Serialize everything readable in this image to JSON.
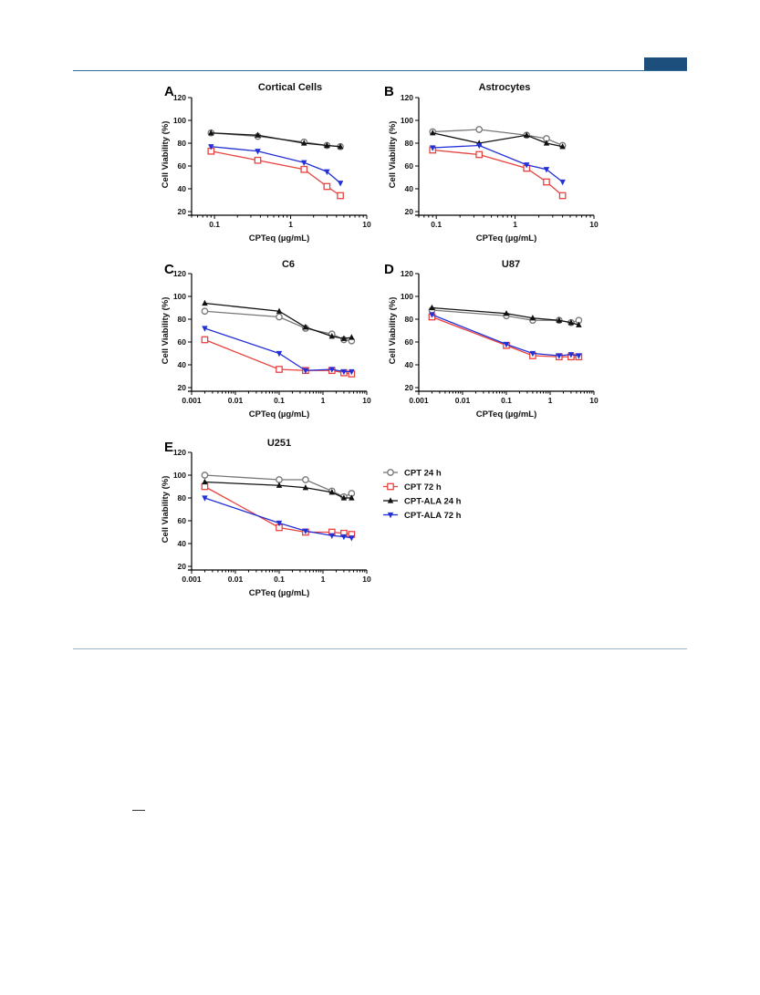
{
  "page": {
    "footnote_mark": ""
  },
  "series_styles": [
    {
      "name": "CPT 24 h",
      "color": "#777777",
      "marker": "circle-open"
    },
    {
      "name": "CPT 72 h",
      "color": "#e8423f",
      "marker": "square-open"
    },
    {
      "name": "CPT-ALA 24 h",
      "color": "#111111",
      "marker": "triangle-up"
    },
    {
      "name": "CPT-ALA 72 h",
      "color": "#2230d6",
      "marker": "triangle-down"
    }
  ],
  "legend": {
    "entries": [
      "CPT 24 h",
      "CPT 72 h",
      "CPT-ALA 24 h",
      "CPT-ALA 72 h"
    ]
  },
  "chart_data": [
    {
      "type": "line",
      "letter": "A",
      "title": "Cortical Cells",
      "xlabel": "CPTeq (µg/mL)",
      "ylabel": "Cell Viability (%)",
      "xscale": "log",
      "xlim": [
        0.05,
        10
      ],
      "ylim": [
        20,
        120
      ],
      "xticks": [
        0.1,
        1,
        10
      ],
      "xticklabels": [
        "0.1",
        "1",
        "10"
      ],
      "yticks": [
        20,
        40,
        60,
        80,
        100,
        120
      ],
      "x": [
        0.09,
        0.37,
        1.5,
        3,
        4.5
      ],
      "series": [
        {
          "name": "CPT 24 h",
          "values": [
            89,
            86,
            81,
            78,
            77
          ]
        },
        {
          "name": "CPT 72 h",
          "values": [
            73,
            65,
            57,
            42,
            34
          ]
        },
        {
          "name": "CPT-ALA 24 h",
          "values": [
            89,
            87,
            80,
            78,
            77
          ]
        },
        {
          "name": "CPT-ALA 72 h",
          "values": [
            77,
            73,
            63,
            55,
            45
          ]
        }
      ]
    },
    {
      "type": "line",
      "letter": "B",
      "title": "Astrocytes",
      "xlabel": "CPTeq (µg/mL)",
      "ylabel": "Cell Viability (%)",
      "xscale": "log",
      "xlim": [
        0.06,
        10
      ],
      "ylim": [
        20,
        120
      ],
      "xticks": [
        0.1,
        1,
        10
      ],
      "xticklabels": [
        "0.1",
        "1",
        "10"
      ],
      "yticks": [
        20,
        40,
        60,
        80,
        100,
        120
      ],
      "x": [
        0.09,
        0.35,
        1.4,
        2.5,
        4
      ],
      "series": [
        {
          "name": "CPT 24 h",
          "values": [
            90,
            92,
            87,
            84,
            78
          ]
        },
        {
          "name": "CPT 72 h",
          "values": [
            74,
            70,
            58,
            46,
            34
          ]
        },
        {
          "name": "CPT-ALA 24 h",
          "values": [
            89,
            80,
            87,
            80,
            77
          ]
        },
        {
          "name": "CPT-ALA 72 h",
          "values": [
            76,
            78,
            61,
            57,
            46
          ]
        }
      ]
    },
    {
      "type": "line",
      "letter": "C",
      "title": "C6",
      "xlabel": "CPTeq (µg/mL)",
      "ylabel": "Cell Viability (%)",
      "xscale": "log",
      "xlim": [
        0.001,
        10
      ],
      "ylim": [
        20,
        120
      ],
      "xticks": [
        0.001,
        0.01,
        0.1,
        1,
        10
      ],
      "xticklabels": [
        "0.001",
        "0.01",
        "0.1",
        "1",
        "10"
      ],
      "yticks": [
        20,
        40,
        60,
        80,
        100,
        120
      ],
      "x": [
        0.002,
        0.1,
        0.4,
        1.6,
        3,
        4.5
      ],
      "series": [
        {
          "name": "CPT 24 h",
          "values": [
            87,
            82,
            72,
            67,
            62,
            61
          ]
        },
        {
          "name": "CPT 72 h",
          "values": [
            62,
            36,
            35,
            35,
            33,
            32
          ]
        },
        {
          "name": "CPT-ALA 24 h",
          "values": [
            94,
            87,
            73,
            65,
            63,
            64
          ]
        },
        {
          "name": "CPT-ALA 72 h",
          "values": [
            72,
            50,
            35,
            36,
            34,
            34
          ]
        }
      ]
    },
    {
      "type": "line",
      "letter": "D",
      "title": "U87",
      "xlabel": "CPTeq (µg/mL)",
      "ylabel": "Cell Viability (%)",
      "xscale": "log",
      "xlim": [
        0.001,
        10
      ],
      "ylim": [
        20,
        120
      ],
      "xticks": [
        0.001,
        0.01,
        0.1,
        1,
        10
      ],
      "xticklabels": [
        "0.001",
        "0.01",
        "0.1",
        "1",
        "10"
      ],
      "yticks": [
        20,
        40,
        60,
        80,
        100,
        120
      ],
      "x": [
        0.002,
        0.1,
        0.4,
        1.6,
        3,
        4.5
      ],
      "series": [
        {
          "name": "CPT 24 h",
          "values": [
            88,
            83,
            79,
            79,
            77,
            79
          ]
        },
        {
          "name": "CPT 72 h",
          "values": [
            82,
            57,
            48,
            47,
            47,
            47
          ]
        },
        {
          "name": "CPT-ALA 24 h",
          "values": [
            90,
            85,
            81,
            79,
            77,
            75
          ]
        },
        {
          "name": "CPT-ALA 72 h",
          "values": [
            84,
            58,
            50,
            48,
            49,
            48
          ]
        }
      ]
    },
    {
      "type": "line",
      "letter": "E",
      "title": "U251",
      "xlabel": "CPTeq (µg/mL)",
      "ylabel": "Cell Viability (%)",
      "xscale": "log",
      "xlim": [
        0.001,
        10
      ],
      "ylim": [
        20,
        120
      ],
      "xticks": [
        0.001,
        0.01,
        0.1,
        1,
        10
      ],
      "xticklabels": [
        "0.001",
        "0.01",
        "0.1",
        "1",
        "10"
      ],
      "yticks": [
        20,
        40,
        60,
        80,
        100,
        120
      ],
      "x": [
        0.002,
        0.1,
        0.4,
        1.6,
        3,
        4.5
      ],
      "series": [
        {
          "name": "CPT 24 h",
          "values": [
            100,
            96,
            96,
            86,
            81,
            84
          ]
        },
        {
          "name": "CPT 72 h",
          "values": [
            90,
            54,
            50,
            50,
            49,
            48
          ]
        },
        {
          "name": "CPT-ALA 24 h",
          "values": [
            94,
            91,
            89,
            85,
            80,
            80
          ]
        },
        {
          "name": "CPT-ALA 72 h",
          "values": [
            80,
            58,
            51,
            47,
            46,
            45
          ]
        }
      ]
    }
  ]
}
